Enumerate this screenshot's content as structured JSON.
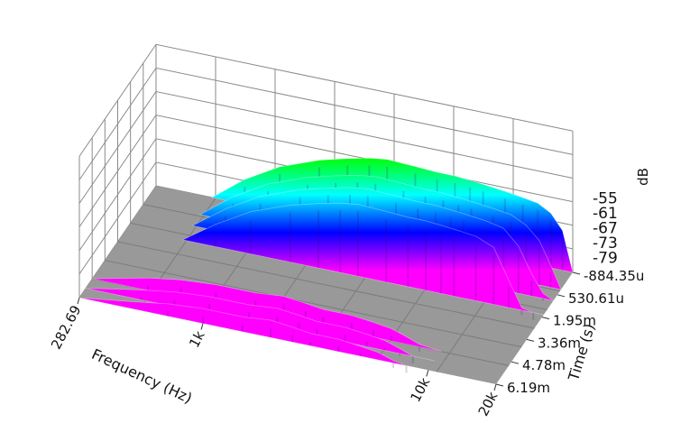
{
  "chart_data": {
    "type": "waterfall-3d",
    "xlabel": "Frequency (Hz)",
    "ylabel": "Time (s)",
    "zlabel": "dB",
    "x_tick_labels": [
      "282.69",
      "1k",
      "10k",
      "20k"
    ],
    "y_tick_labels": [
      "-884.35u",
      "530.61u",
      "1.95m",
      "3.36m",
      "4.78m",
      "6.19m"
    ],
    "z_tick_labels": [
      "-55",
      "-61",
      "-67",
      "-73",
      "-79"
    ],
    "x_range_hz": [
      282.69,
      20000
    ],
    "y_range_s": [
      -0.00088435,
      0.00619
    ],
    "z_range_db": [
      -85,
      -52
    ],
    "colormap": [
      "#ff00ff",
      "#0000ff",
      "#00ffff",
      "#00ff00",
      "#ffff00",
      "#ff0000"
    ],
    "floor_color": "#999999",
    "grid": true,
    "surfaces": [
      {
        "profile_hz": [
          282.69,
          500,
          700,
          1000,
          1500,
          2000,
          2500,
          3000,
          4000,
          5000,
          6000,
          7000,
          8000,
          10000
        ],
        "slices": [
          {
            "time_s": 0.005,
            "db": [
              -85,
              -80,
              -78,
              -77,
              -77,
              -76,
              -77,
              -78,
              -78,
              -79,
              -80,
              -82,
              -84,
              -85
            ]
          },
          {
            "time_s": 0.0056,
            "db": [
              -85,
              -81,
              -79,
              -78,
              -78,
              -77,
              -78,
              -79,
              -79,
              -80,
              -81,
              -83,
              -85,
              -85
            ]
          },
          {
            "time_s": 0.0062,
            "db": [
              -85,
              -82,
              -80,
              -79,
              -79,
              -78,
              -79,
              -80,
              -80,
              -81,
              -82,
              -84,
              -85,
              -85
            ]
          }
        ]
      },
      {
        "profile_hz": [
          500,
          700,
          1000,
          1500,
          2000,
          2500,
          3000,
          4000,
          5000,
          6000,
          7000,
          8000,
          10000,
          12000,
          14000,
          16000,
          18000,
          20000
        ],
        "slices": [
          {
            "time_s": -0.00088435,
            "db": [
              -85,
              -75,
              -67,
              -61,
              -58,
              -56,
              -55,
              -55.5,
              -56,
              -56,
              -56.5,
              -57,
              -58,
              -59,
              -60,
              -63,
              -69,
              -85
            ]
          },
          {
            "time_s": 0.0002,
            "db": [
              -85,
              -75,
              -67,
              -61,
              -58,
              -56,
              -55,
              -55.5,
              -56,
              -56,
              -56.5,
              -57,
              -58,
              -59,
              -62,
              -67,
              -76,
              -85
            ]
          },
          {
            "time_s": 0.0009,
            "db": [
              -85,
              -75.5,
              -67.5,
              -61.5,
              -58.5,
              -56.5,
              -55.5,
              -56,
              -56.5,
              -56.5,
              -57,
              -57.5,
              -58.5,
              -60,
              -66,
              -76,
              -83,
              -85
            ]
          },
          {
            "time_s": 0.0018,
            "db": [
              -85,
              -76,
              -68,
              -62,
              -59,
              -57,
              -56,
              -56.5,
              -57,
              -57,
              -57.5,
              -58,
              -59,
              -62,
              -74,
              -84,
              -85,
              -85
            ]
          }
        ]
      }
    ]
  }
}
